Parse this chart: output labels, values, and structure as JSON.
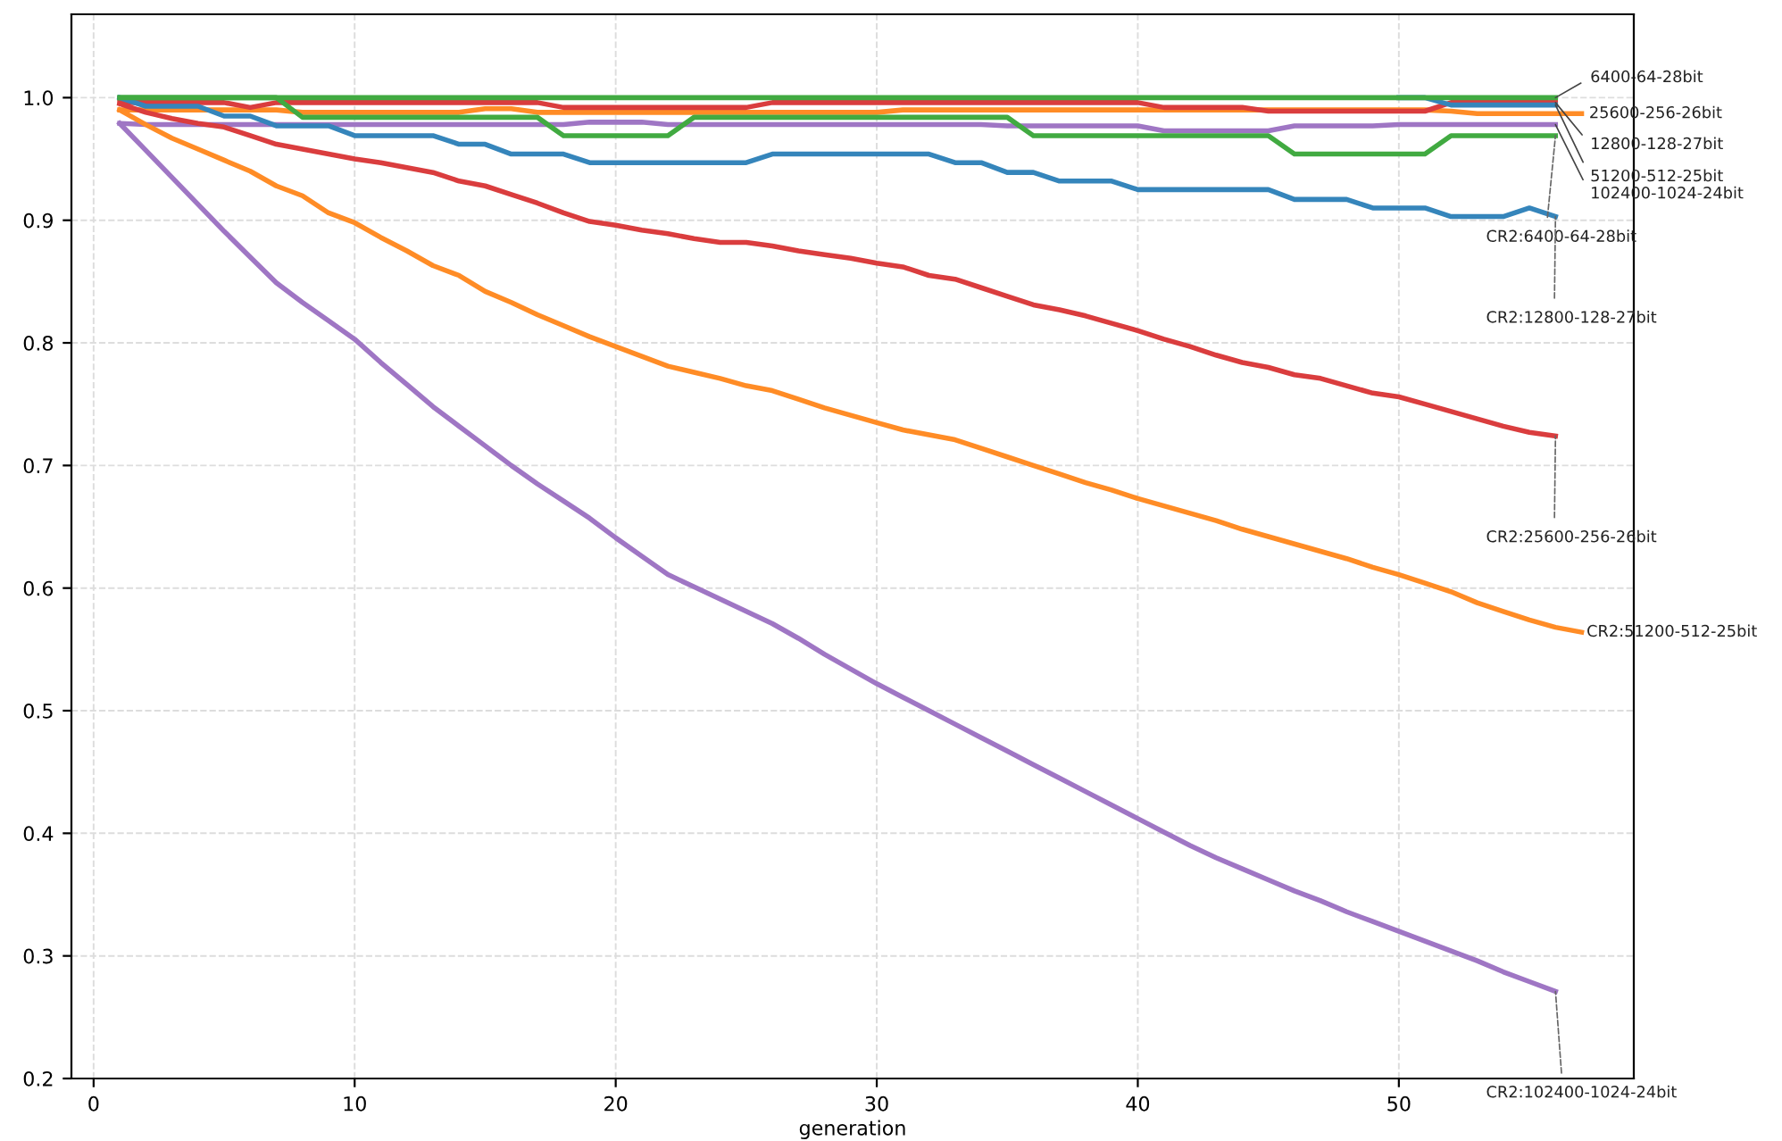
{
  "chart_data": {
    "type": "line",
    "xlabel": "generation",
    "x": [
      1,
      2,
      3,
      4,
      5,
      6,
      7,
      8,
      9,
      10,
      11,
      12,
      13,
      14,
      15,
      16,
      17,
      18,
      19,
      20,
      21,
      22,
      23,
      24,
      25,
      26,
      27,
      28,
      29,
      30,
      31,
      32,
      33,
      34,
      35,
      36,
      37,
      38,
      39,
      40,
      41,
      42,
      43,
      44,
      45,
      46,
      47,
      48,
      49,
      50,
      51,
      52,
      53,
      54,
      55,
      56,
      57
    ],
    "xlim": [
      -0.85,
      59
    ],
    "xticks": [
      0,
      10,
      20,
      30,
      40,
      50
    ],
    "ylim": [
      0.2,
      1.068
    ],
    "yticks": [
      0.2,
      0.3,
      0.4,
      0.5,
      0.6,
      0.7,
      0.8,
      0.9,
      {
        "value": 1,
        "label": "1.0"
      }
    ],
    "grid": true,
    "legend": false,
    "line_style": "solid",
    "marker": "none",
    "series": [
      {
        "name": "6400-64-28bit",
        "color": "#41aa41",
        "values": [
          1.0,
          1.0,
          1.0,
          1.0,
          1.0,
          1.0,
          1.0,
          1.0,
          1.0,
          1.0,
          1.0,
          1.0,
          1.0,
          1.0,
          1.0,
          1.0,
          1.0,
          1.0,
          1.0,
          1.0,
          1.0,
          1.0,
          1.0,
          1.0,
          1.0,
          1.0,
          1.0,
          1.0,
          1.0,
          1.0,
          1.0,
          1.0,
          1.0,
          1.0,
          1.0,
          1.0,
          1.0,
          1.0,
          1.0,
          1.0,
          1.0,
          1.0,
          1.0,
          1.0,
          1.0,
          1.0,
          1.0,
          1.0,
          1.0,
          1.0,
          1.0,
          1.0,
          1.0,
          1.0,
          1.0,
          1.0,
          null
        ]
      },
      {
        "name": "25600-256-26bit",
        "color": "#ff8c26",
        "values": [
          0.99,
          0.99,
          0.99,
          0.99,
          0.99,
          0.99,
          0.99,
          0.988,
          0.988,
          0.988,
          0.988,
          0.988,
          0.988,
          0.988,
          0.991,
          0.991,
          0.988,
          0.988,
          0.988,
          0.988,
          0.988,
          0.988,
          0.988,
          0.988,
          0.988,
          0.988,
          0.988,
          0.988,
          0.988,
          0.988,
          0.99,
          0.99,
          0.99,
          0.99,
          0.99,
          0.99,
          0.99,
          0.99,
          0.99,
          0.99,
          0.99,
          0.99,
          0.99,
          0.99,
          0.99,
          0.99,
          0.99,
          0.99,
          0.99,
          0.99,
          0.99,
          0.989,
          0.987,
          0.987,
          0.987,
          0.987,
          0.987
        ]
      },
      {
        "name": "12800-128-27bit",
        "color": "#da3d3e",
        "values": [
          0.996,
          0.996,
          0.996,
          0.996,
          0.996,
          0.992,
          0.996,
          0.996,
          0.996,
          0.996,
          0.996,
          0.996,
          0.996,
          0.996,
          0.996,
          0.996,
          0.996,
          0.992,
          0.992,
          0.992,
          0.992,
          0.992,
          0.992,
          0.992,
          0.992,
          0.996,
          0.996,
          0.996,
          0.996,
          0.996,
          0.996,
          0.996,
          0.996,
          0.996,
          0.996,
          0.996,
          0.996,
          0.996,
          0.996,
          0.996,
          0.992,
          0.992,
          0.992,
          0.992,
          0.989,
          0.989,
          0.989,
          0.989,
          0.989,
          0.989,
          0.989,
          0.996,
          0.996,
          0.996,
          0.996,
          0.996,
          null
        ]
      },
      {
        "name": "51200-512-25bit",
        "color": "#3585bb",
        "values": [
          null,
          null,
          null,
          null,
          null,
          null,
          null,
          null,
          null,
          null,
          null,
          null,
          null,
          null,
          null,
          null,
          null,
          null,
          null,
          null,
          null,
          null,
          null,
          null,
          null,
          null,
          null,
          null,
          null,
          null,
          null,
          null,
          null,
          null,
          null,
          null,
          null,
          null,
          null,
          null,
          null,
          null,
          null,
          null,
          null,
          null,
          null,
          null,
          null,
          1.0,
          1.0,
          0.994,
          0.994,
          0.994,
          0.994,
          0.994,
          null
        ]
      },
      {
        "name": "102400-1024-24bit",
        "color": "#9f76c4",
        "values": [
          0.979,
          0.978,
          0.978,
          0.978,
          0.978,
          0.978,
          0.978,
          0.978,
          0.978,
          0.978,
          0.978,
          0.978,
          0.978,
          0.978,
          0.978,
          0.978,
          0.978,
          0.978,
          0.98,
          0.98,
          0.98,
          0.978,
          0.978,
          0.978,
          0.978,
          0.978,
          0.978,
          0.978,
          0.978,
          0.978,
          0.978,
          0.978,
          0.978,
          0.978,
          0.977,
          0.977,
          0.977,
          0.977,
          0.977,
          0.977,
          0.973,
          0.973,
          0.973,
          0.973,
          0.973,
          0.977,
          0.977,
          0.977,
          0.977,
          0.978,
          0.978,
          0.978,
          0.978,
          0.978,
          0.978,
          0.978,
          null
        ]
      },
      {
        "name": "CR2:6400-64-28bit",
        "color": "#41aa41",
        "values": [
          1.0,
          1.0,
          1.0,
          1.0,
          1.0,
          1.0,
          1.0,
          0.984,
          0.984,
          0.984,
          0.984,
          0.984,
          0.984,
          0.984,
          0.984,
          0.984,
          0.984,
          0.969,
          0.969,
          0.969,
          0.969,
          0.969,
          0.984,
          0.984,
          0.984,
          0.984,
          0.984,
          0.984,
          0.984,
          0.984,
          0.984,
          0.984,
          0.984,
          0.984,
          0.984,
          0.969,
          0.969,
          0.969,
          0.969,
          0.969,
          0.969,
          0.969,
          0.969,
          0.969,
          0.969,
          0.954,
          0.954,
          0.954,
          0.954,
          0.954,
          0.954,
          0.969,
          0.969,
          0.969,
          0.969,
          0.969,
          null
        ]
      },
      {
        "name": "CR2:12800-128-27bit",
        "color": "#3585bb",
        "values": [
          1.0,
          0.993,
          0.993,
          0.993,
          0.985,
          0.985,
          0.977,
          0.977,
          0.977,
          0.969,
          0.969,
          0.969,
          0.969,
          0.962,
          0.962,
          0.954,
          0.954,
          0.954,
          0.947,
          0.947,
          0.947,
          0.947,
          0.947,
          0.947,
          0.947,
          0.954,
          0.954,
          0.954,
          0.954,
          0.954,
          0.954,
          0.954,
          0.947,
          0.947,
          0.939,
          0.939,
          0.932,
          0.932,
          0.932,
          0.925,
          0.925,
          0.925,
          0.925,
          0.925,
          0.925,
          0.917,
          0.917,
          0.917,
          0.91,
          0.91,
          0.91,
          0.903,
          0.903,
          0.903,
          0.91,
          0.903,
          null
        ]
      },
      {
        "name": "CR2:25600-256-26bit",
        "color": "#da3d3e",
        "values": [
          0.995,
          0.988,
          0.983,
          0.979,
          0.976,
          0.969,
          0.962,
          0.958,
          0.954,
          0.95,
          0.947,
          0.943,
          0.939,
          0.932,
          0.928,
          0.921,
          0.914,
          0.906,
          0.899,
          0.896,
          0.892,
          0.889,
          0.885,
          0.882,
          0.882,
          0.879,
          0.875,
          0.872,
          0.869,
          0.865,
          0.862,
          0.855,
          0.852,
          0.845,
          0.838,
          0.831,
          0.827,
          0.822,
          0.816,
          0.81,
          0.803,
          0.797,
          0.79,
          0.784,
          0.78,
          0.774,
          0.771,
          0.765,
          0.759,
          0.756,
          0.75,
          0.744,
          0.738,
          0.732,
          0.727,
          0.724,
          null
        ]
      },
      {
        "name": "CR2:51200-512-25bit",
        "color": "#ff8c26",
        "values": [
          0.99,
          0.978,
          0.967,
          0.958,
          0.949,
          0.94,
          0.928,
          0.92,
          0.906,
          0.898,
          0.886,
          0.875,
          0.863,
          0.855,
          0.842,
          0.833,
          0.823,
          0.814,
          0.805,
          0.797,
          0.789,
          0.781,
          0.776,
          0.771,
          0.765,
          0.761,
          0.754,
          0.747,
          0.741,
          0.735,
          0.729,
          0.725,
          0.721,
          0.714,
          0.707,
          0.7,
          0.693,
          0.686,
          0.68,
          0.673,
          0.667,
          0.661,
          0.655,
          0.648,
          0.642,
          0.636,
          0.63,
          0.624,
          0.617,
          0.611,
          0.604,
          0.597,
          0.588,
          0.581,
          0.574,
          0.568,
          0.564
        ]
      },
      {
        "name": "CR2:102400-1024-24bit",
        "color": "#9f76c4",
        "values": [
          0.979,
          0.957,
          0.935,
          0.913,
          0.891,
          0.87,
          0.849,
          0.833,
          0.818,
          0.803,
          0.784,
          0.766,
          0.748,
          0.732,
          0.716,
          0.7,
          0.685,
          0.671,
          0.657,
          0.641,
          0.626,
          0.611,
          0.601,
          0.591,
          0.581,
          0.571,
          0.559,
          0.546,
          0.534,
          0.522,
          0.511,
          0.5,
          0.489,
          0.478,
          0.467,
          0.456,
          0.445,
          0.434,
          0.423,
          0.412,
          0.401,
          0.39,
          0.38,
          0.371,
          0.362,
          0.353,
          0.345,
          0.336,
          0.328,
          0.32,
          0.312,
          0.304,
          0.296,
          0.287,
          0.279,
          0.271,
          null
        ]
      }
    ]
  }
}
